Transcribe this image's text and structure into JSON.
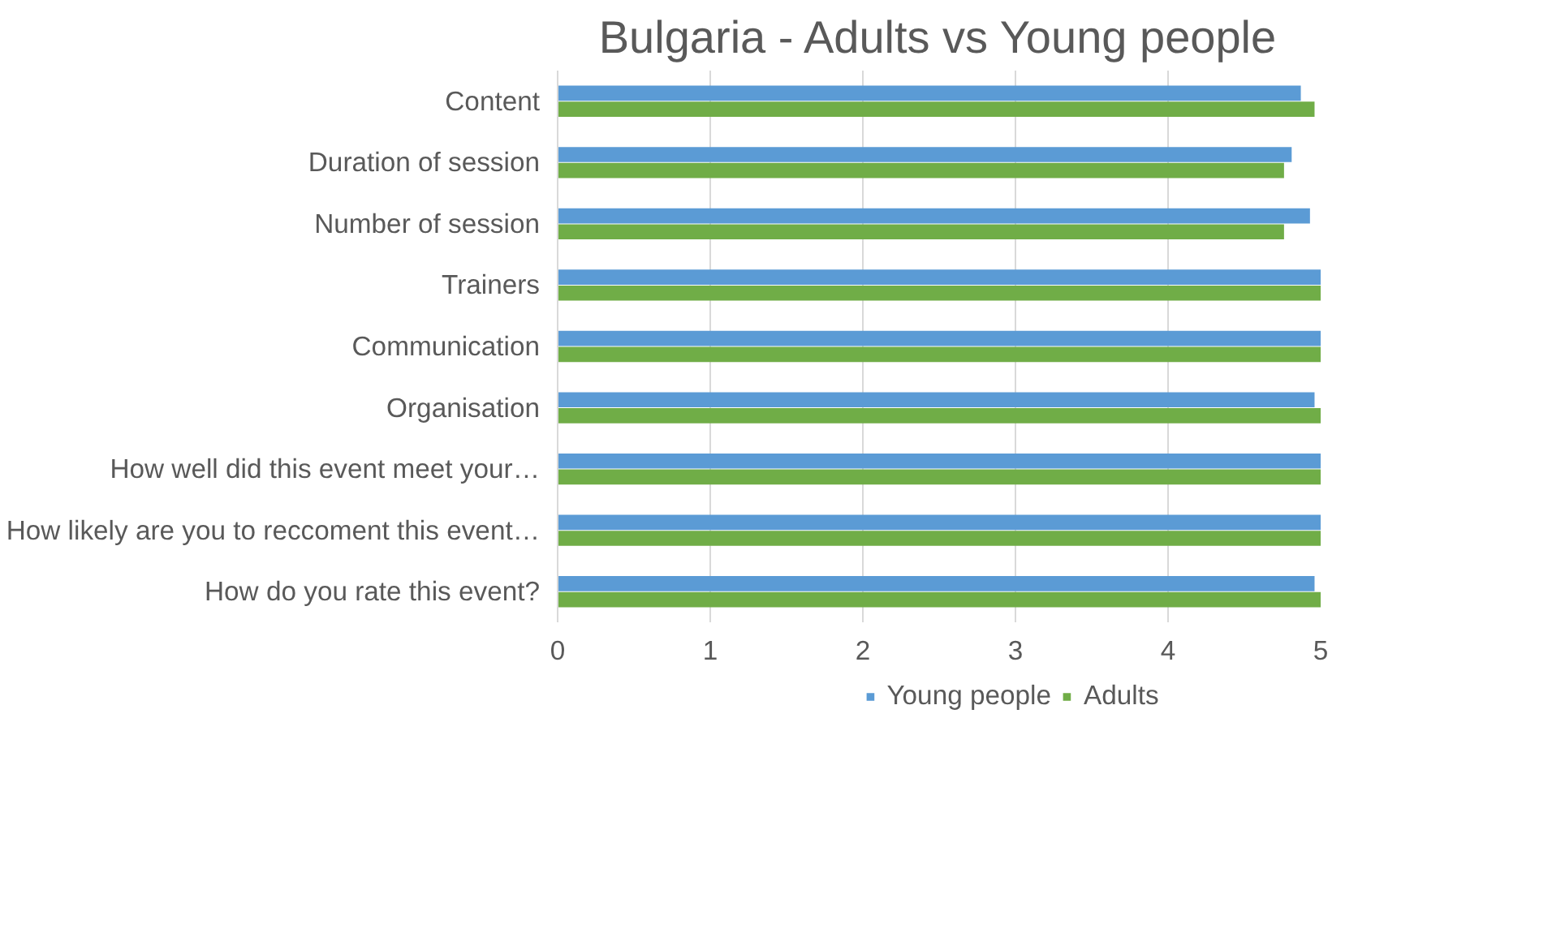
{
  "chart_data": {
    "type": "bar",
    "orientation": "horizontal",
    "title": "Bulgaria - Adults vs Young people",
    "categories": [
      "Content",
      "Duration of session",
      "Number of session",
      "Trainers",
      "Communication",
      "Organisation",
      "How well did this event meet your…",
      "How likely are you to reccoment this event…",
      "How do you rate this event?"
    ],
    "series": [
      {
        "name": "Young people",
        "color": "#5b9bd5",
        "values": [
          4.87,
          4.81,
          4.93,
          5,
          5,
          4.96,
          5,
          5,
          4.96
        ]
      },
      {
        "name": "Adults",
        "color": "#70ad47",
        "values": [
          4.96,
          4.76,
          4.76,
          5,
          5,
          5,
          5,
          5,
          5
        ]
      }
    ],
    "xlim": [
      0,
      5
    ],
    "xticks": [
      0,
      1,
      2,
      3,
      4,
      5
    ],
    "grid": "x",
    "legend": "bottom"
  }
}
